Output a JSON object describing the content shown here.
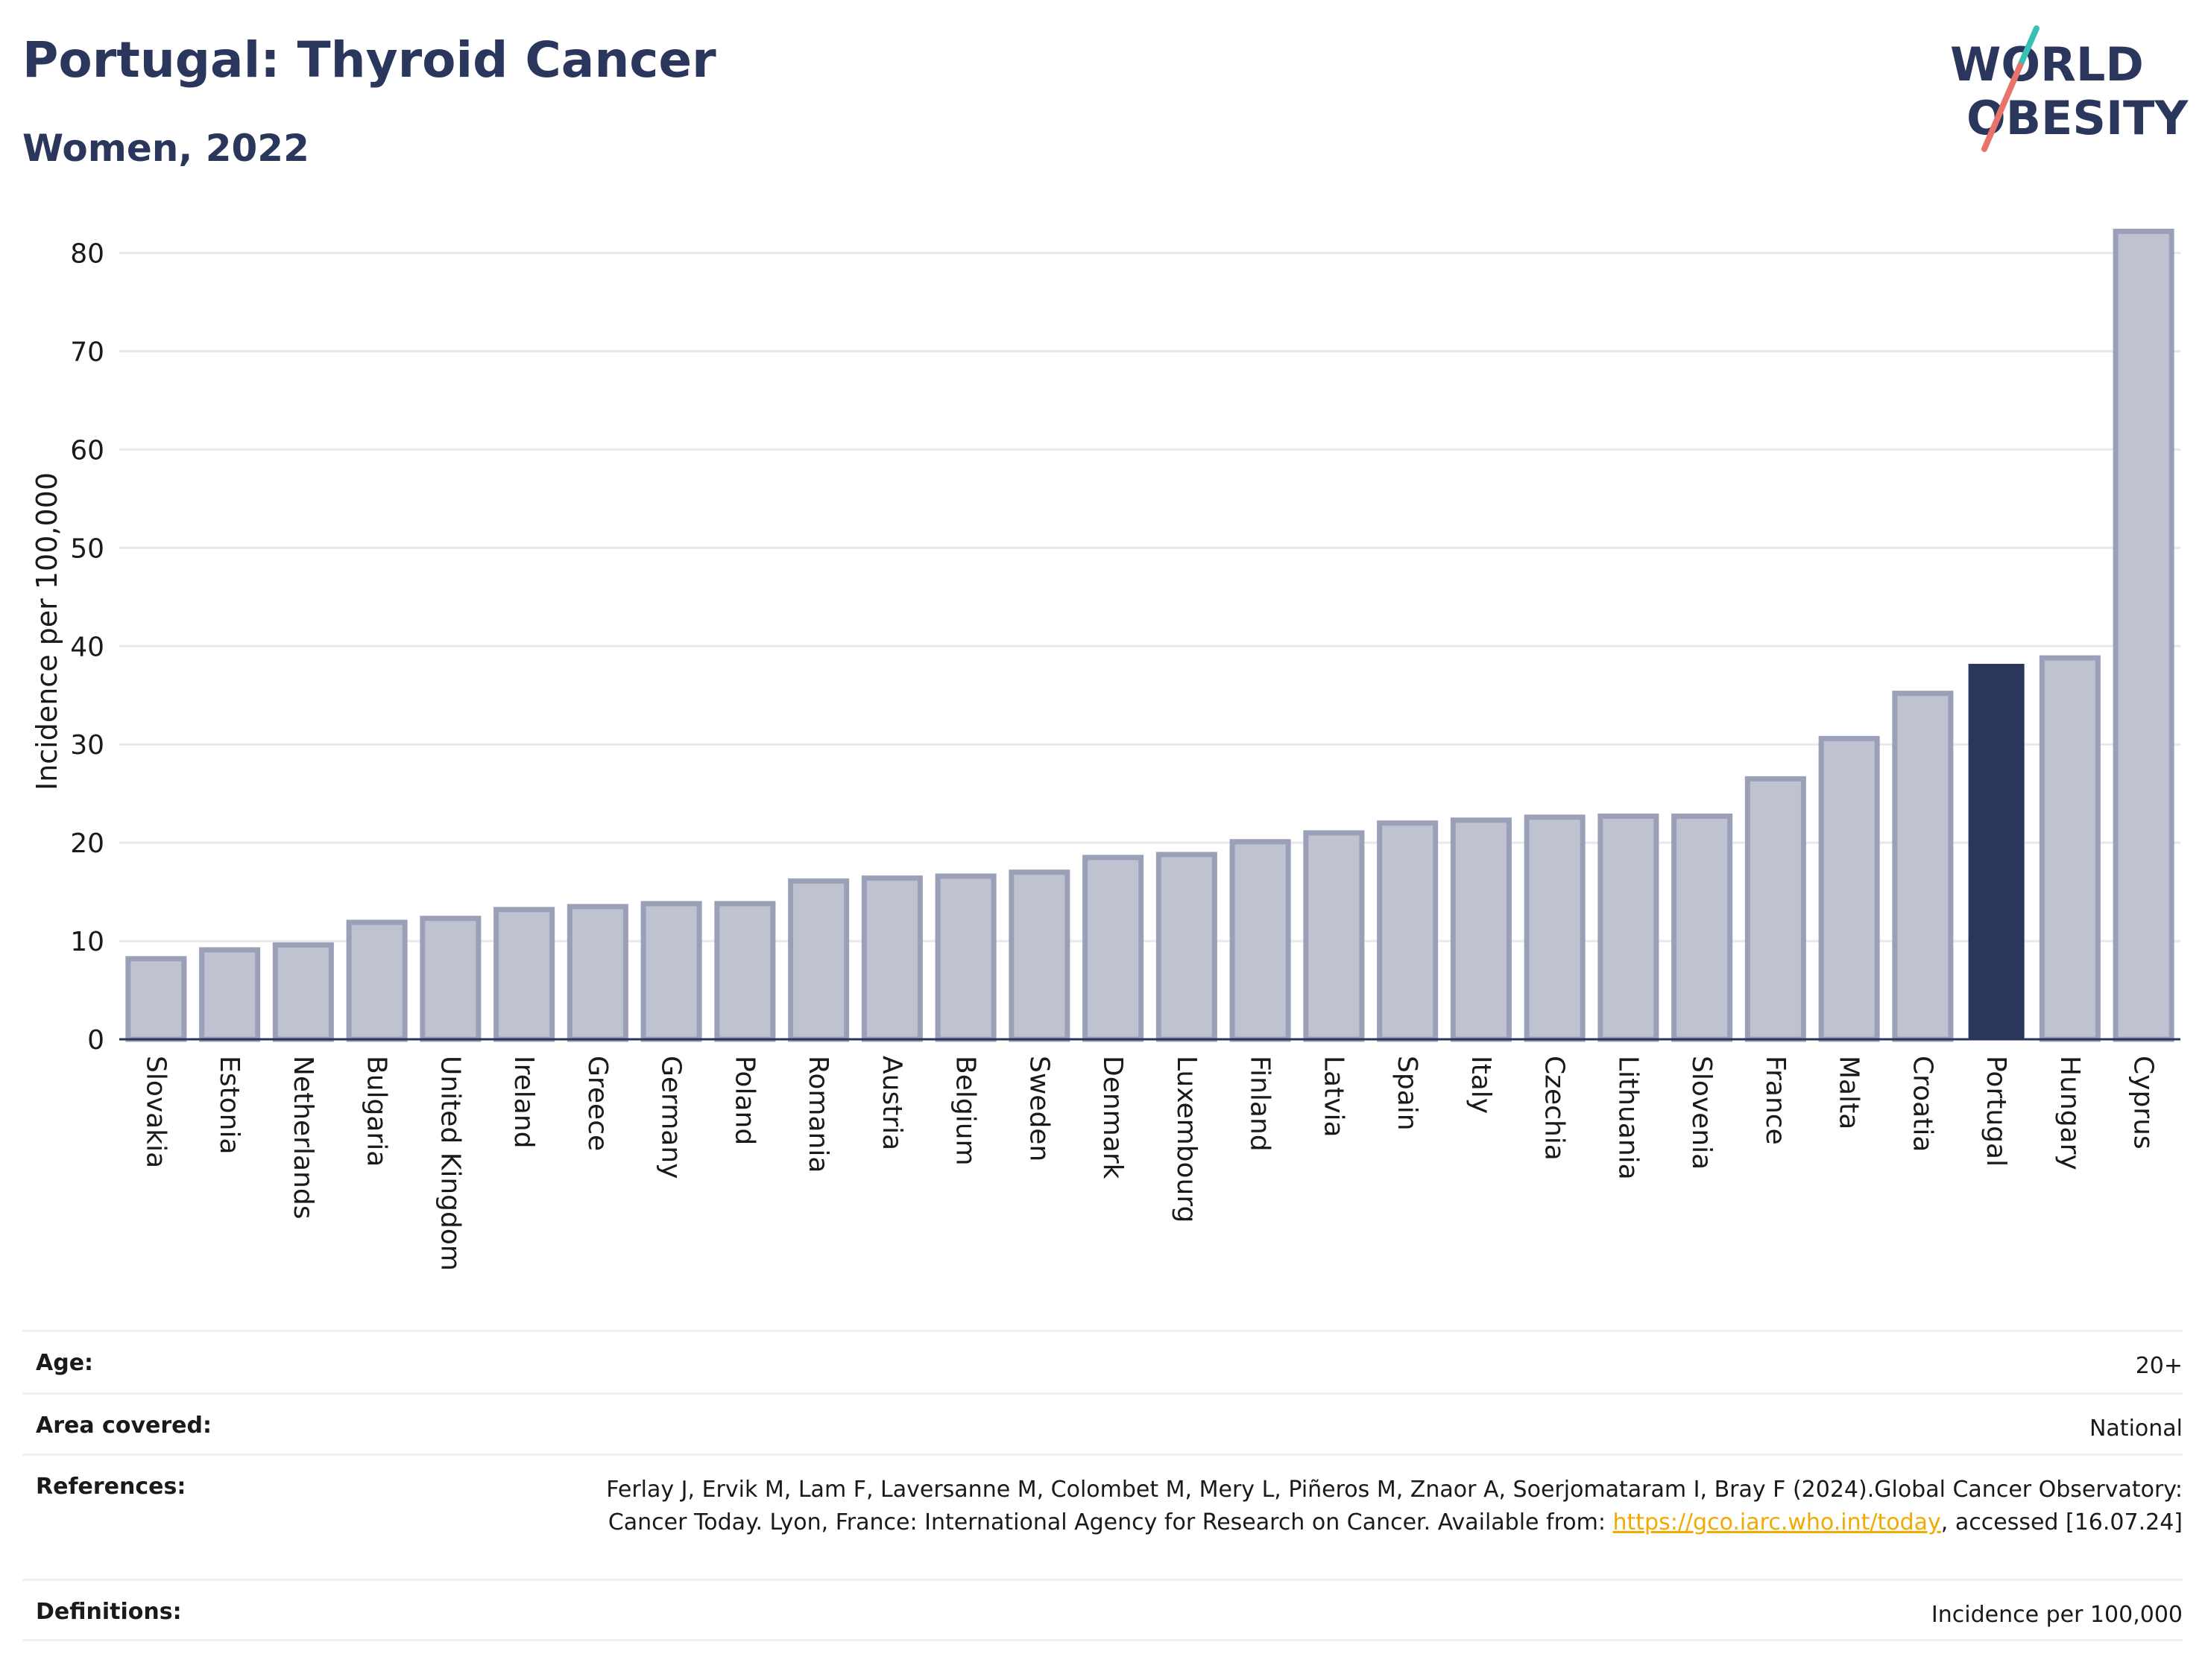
{
  "title": "Portugal: Thyroid Cancer",
  "subtitle": "Women, 2022",
  "logo": {
    "line1": "WORLD",
    "line2": "OBESITY"
  },
  "colors": {
    "bar": "#bfc2cf",
    "bar_stroke": "#9aa0b8",
    "highlight": "#2b365d",
    "grid": "#e6e8ee",
    "accent_red": "#e8736a",
    "accent_teal": "#3bbfb4",
    "link": "#f2a900"
  },
  "chart_data": {
    "type": "bar",
    "title": "Portugal: Thyroid Cancer",
    "subtitle": "Women, 2022",
    "ylabel": "Incidence per 100,000",
    "xlabel": "",
    "ylim": [
      0,
      83
    ],
    "yticks": [
      0,
      10,
      20,
      30,
      40,
      50,
      60,
      70,
      80
    ],
    "grid": true,
    "highlight": "Portugal",
    "categories": [
      "Slovakia",
      "Estonia",
      "Netherlands",
      "Bulgaria",
      "United Kingdom",
      "Ireland",
      "Greece",
      "Germany",
      "Poland",
      "Romania",
      "Austria",
      "Belgium",
      "Sweden",
      "Denmark",
      "Luxembourg",
      "Finland",
      "Latvia",
      "Spain",
      "Italy",
      "Czechia",
      "Lithuania",
      "Slovenia",
      "France",
      "Malta",
      "Croatia",
      "Portugal",
      "Hungary",
      "Cyprus"
    ],
    "values": [
      8.2,
      9.1,
      9.6,
      11.9,
      12.3,
      13.2,
      13.5,
      13.8,
      13.8,
      16.1,
      16.4,
      16.6,
      17.0,
      18.5,
      18.8,
      20.1,
      21.0,
      22.0,
      22.3,
      22.6,
      22.7,
      22.7,
      26.5,
      30.6,
      35.2,
      38.2,
      38.8,
      82.2
    ]
  },
  "info": {
    "age_label": "Age:",
    "age_value": "20+",
    "area_label": "Area covered:",
    "area_value": "National",
    "references_label": "References:",
    "references_text_1": "Ferlay J, Ervik M, Lam F, Laversanne M, Colombet M, Mery L, Piñeros M, Znaor A, Soerjomataram I, Bray F (2024).Global Cancer Observatory: Cancer Today. Lyon, France: International Agency for Research on Cancer. Available from: ",
    "references_link": "https://gco.iarc.who.int/today",
    "references_text_2": ", accessed [16.07.24]",
    "definitions_label": "Definitions:",
    "definitions_value": "Incidence per 100,000"
  }
}
